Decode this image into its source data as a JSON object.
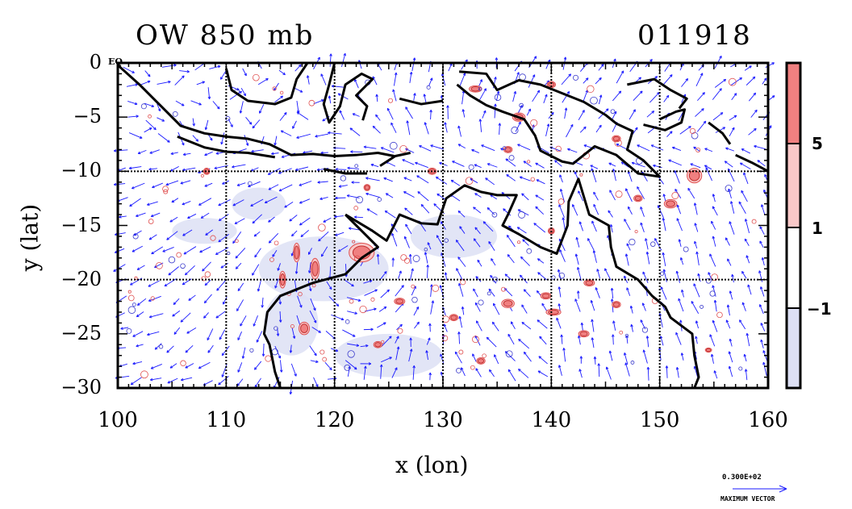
{
  "title_left": "OW 850 mb",
  "title_right": "011918",
  "equator_label": "EQ",
  "axes": {
    "x_label": "x (lon)",
    "y_label": "y (lat)",
    "x_ticks": [
      "100",
      "110",
      "120",
      "130",
      "140",
      "150",
      "160"
    ],
    "y_ticks": [
      "0",
      "−5",
      "−10",
      "−15",
      "−20",
      "−25",
      "−30"
    ],
    "x_range": [
      100,
      160
    ],
    "y_range": [
      -30,
      0
    ]
  },
  "colorbar": {
    "ticks": [
      "5",
      "1",
      "−1"
    ],
    "levels": [
      {
        "label": "> 5",
        "color": "#f08080"
      },
      {
        "label": "1 to 5",
        "color": "#f9c8c8"
      },
      {
        "label": "-1 to 1",
        "color": "#ffffff"
      },
      {
        "label": "< -1",
        "color": "#dde0f5"
      }
    ]
  },
  "vector_legend": {
    "value": "0.300E+02",
    "label": "MAXIMUM VECTOR"
  },
  "cyclone_center": {
    "lon": 122,
    "lat": -18
  },
  "colors": {
    "vector": "#1a1aff",
    "positive_contour": "#e05050",
    "negative_contour": "#3a3acc",
    "coast": "#000000"
  }
}
